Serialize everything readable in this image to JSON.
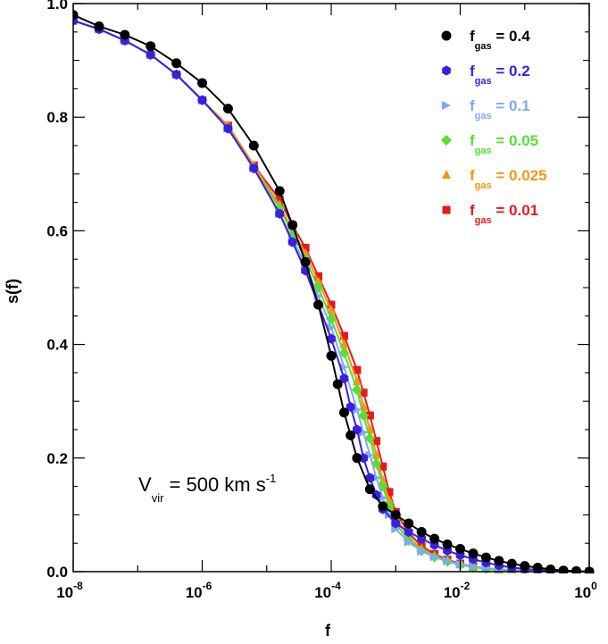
{
  "chart_data": {
    "type": "line",
    "title": "",
    "xlabel": "f",
    "ylabel": "s(f)",
    "xscale": "log",
    "xlim": [
      1e-08,
      1
    ],
    "ylim": [
      0,
      1.0
    ],
    "grid": false,
    "legend_position": "top-right",
    "x_ticks": [
      {
        "base": "10",
        "exp": "-8"
      },
      {
        "base": "10",
        "exp": "-6"
      },
      {
        "base": "10",
        "exp": "-4"
      },
      {
        "base": "10",
        "exp": "-2"
      },
      {
        "base": "10",
        "exp": "0"
      }
    ],
    "y_ticks": [
      "0.0",
      "0.2",
      "0.4",
      "0.6",
      "0.8",
      "1.0"
    ],
    "annotation": {
      "main": "V",
      "sub": "vir",
      "rest": " = 500 km s",
      "sup": "-1"
    },
    "series": [
      {
        "name": "0.4",
        "legend_main": "f",
        "legend_sub": "gas",
        "legend_rest": " = 0.4",
        "color": "#000000",
        "marker": "circle",
        "x": [
          -8.0,
          -7.6,
          -7.2,
          -6.8,
          -6.4,
          -6.0,
          -5.6,
          -5.2,
          -4.8,
          -4.6,
          -4.4,
          -4.2,
          -4.0,
          -3.9,
          -3.8,
          -3.7,
          -3.6,
          -3.4,
          -3.2,
          -3.0,
          -2.8,
          -2.6,
          -2.4,
          -2.2,
          -2.0,
          -1.8,
          -1.6,
          -1.4,
          -1.2,
          -1.0,
          -0.8,
          -0.6,
          -0.4,
          -0.2,
          0.0
        ],
        "y": [
          0.98,
          0.96,
          0.945,
          0.925,
          0.895,
          0.86,
          0.815,
          0.75,
          0.67,
          0.61,
          0.545,
          0.47,
          0.38,
          0.33,
          0.28,
          0.24,
          0.2,
          0.145,
          0.115,
          0.1,
          0.085,
          0.07,
          0.058,
          0.048,
          0.04,
          0.032,
          0.025,
          0.019,
          0.014,
          0.01,
          0.007,
          0.004,
          0.002,
          0.001,
          0.0
        ]
      },
      {
        "name": "0.2",
        "legend_main": "f",
        "legend_sub": "gas",
        "legend_rest": " = 0.2",
        "color": "#3a1fe0",
        "marker": "hexagon",
        "x": [
          -8.0,
          -7.6,
          -7.2,
          -6.8,
          -6.4,
          -6.0,
          -5.6,
          -5.2,
          -4.8,
          -4.6,
          -4.4,
          -4.2,
          -4.0,
          -3.8,
          -3.7,
          -3.6,
          -3.5,
          -3.4,
          -3.3,
          -3.2,
          -3.0,
          -2.8,
          -2.6,
          -2.4,
          -2.2,
          -2.0,
          -1.8,
          -1.6,
          -1.4,
          -1.2,
          -1.0,
          -0.8,
          -0.6,
          -0.4,
          -0.2,
          0.0
        ],
        "y": [
          0.97,
          0.955,
          0.935,
          0.91,
          0.875,
          0.83,
          0.78,
          0.71,
          0.63,
          0.58,
          0.53,
          0.47,
          0.41,
          0.34,
          0.29,
          0.25,
          0.2,
          0.165,
          0.135,
          0.11,
          0.085,
          0.07,
          0.058,
          0.047,
          0.037,
          0.029,
          0.022,
          0.016,
          0.011,
          0.007,
          0.005,
          0.003,
          0.002,
          0.001,
          0.0,
          0.0
        ]
      },
      {
        "name": "0.1",
        "legend_main": "f",
        "legend_sub": "gas",
        "legend_rest": " = 0.1",
        "color": "#7ea9f5",
        "marker": "triangle-right",
        "x": [
          -8.0,
          -7.6,
          -7.2,
          -6.8,
          -6.4,
          -6.0,
          -5.6,
          -5.2,
          -4.8,
          -4.6,
          -4.4,
          -4.2,
          -4.0,
          -3.8,
          -3.6,
          -3.5,
          -3.4,
          -3.3,
          -3.2,
          -3.1,
          -3.0,
          -2.8,
          -2.6,
          -2.4,
          -2.2,
          -2.0,
          -1.8,
          -1.6,
          -1.4,
          -1.2,
          -1.0,
          -0.8,
          -0.6,
          -0.4,
          -0.2,
          0.0
        ],
        "y": [
          0.97,
          0.955,
          0.935,
          0.91,
          0.875,
          0.83,
          0.78,
          0.71,
          0.63,
          0.585,
          0.54,
          0.485,
          0.43,
          0.36,
          0.285,
          0.245,
          0.205,
          0.165,
          0.13,
          0.1,
          0.075,
          0.052,
          0.036,
          0.026,
          0.019,
          0.013,
          0.009,
          0.006,
          0.004,
          0.003,
          0.002,
          0.001,
          0.0,
          0.0,
          0.0,
          0.0
        ]
      },
      {
        "name": "0.05",
        "legend_main": "f",
        "legend_sub": "gas",
        "legend_rest": " = 0.05",
        "color": "#55e030",
        "marker": "diamond",
        "x": [
          -8.0,
          -7.6,
          -7.2,
          -6.8,
          -6.4,
          -6.0,
          -5.6,
          -5.2,
          -4.8,
          -4.6,
          -4.4,
          -4.2,
          -4.0,
          -3.8,
          -3.6,
          -3.5,
          -3.4,
          -3.3,
          -3.2,
          -3.1,
          -3.0,
          -2.8,
          -2.6,
          -2.4,
          -2.2,
          -2.0,
          -1.8,
          -1.6,
          -1.4,
          -1.2,
          -1.0,
          -0.8,
          -0.6,
          -0.4,
          -0.2,
          0.0
        ],
        "y": [
          0.97,
          0.955,
          0.935,
          0.91,
          0.875,
          0.83,
          0.78,
          0.71,
          0.64,
          0.595,
          0.55,
          0.5,
          0.445,
          0.385,
          0.32,
          0.275,
          0.235,
          0.19,
          0.15,
          0.115,
          0.085,
          0.055,
          0.037,
          0.026,
          0.018,
          0.012,
          0.008,
          0.005,
          0.003,
          0.002,
          0.001,
          0.001,
          0.0,
          0.0,
          0.0,
          0.0
        ]
      },
      {
        "name": "0.025",
        "legend_main": "f",
        "legend_sub": "gas",
        "legend_rest": " = 0.025",
        "color": "#f59514",
        "marker": "triangle-up",
        "x": [
          -8.0,
          -7.6,
          -7.2,
          -6.8,
          -6.4,
          -6.0,
          -5.6,
          -5.2,
          -4.8,
          -4.6,
          -4.4,
          -4.2,
          -4.0,
          -3.8,
          -3.6,
          -3.5,
          -3.4,
          -3.3,
          -3.2,
          -3.1,
          -3.0,
          -2.8,
          -2.6,
          -2.4,
          -2.2,
          -2.0,
          -1.8,
          -1.6,
          -1.4,
          -1.2,
          -1.0,
          -0.8,
          -0.6,
          -0.4,
          -0.2,
          0.0
        ],
        "y": [
          0.97,
          0.955,
          0.935,
          0.91,
          0.875,
          0.83,
          0.785,
          0.715,
          0.645,
          0.6,
          0.56,
          0.51,
          0.46,
          0.4,
          0.335,
          0.29,
          0.25,
          0.205,
          0.16,
          0.125,
          0.095,
          0.06,
          0.04,
          0.028,
          0.019,
          0.013,
          0.009,
          0.006,
          0.004,
          0.002,
          0.001,
          0.001,
          0.0,
          0.0,
          0.0,
          0.0
        ]
      },
      {
        "name": "0.01",
        "legend_main": "f",
        "legend_sub": "gas",
        "legend_rest": " = 0.01",
        "color": "#e41a1c",
        "marker": "square",
        "x": [
          -8.0,
          -7.6,
          -7.2,
          -6.8,
          -6.4,
          -6.0,
          -5.6,
          -5.2,
          -4.8,
          -4.6,
          -4.4,
          -4.2,
          -4.0,
          -3.8,
          -3.6,
          -3.5,
          -3.4,
          -3.3,
          -3.2,
          -3.1,
          -3.0,
          -2.8,
          -2.6,
          -2.4,
          -2.2,
          -2.0,
          -1.8,
          -1.6,
          -1.4,
          -1.2,
          -1.0,
          -0.8,
          -0.6,
          -0.4,
          -0.2,
          0.0
        ],
        "y": [
          0.97,
          0.955,
          0.935,
          0.91,
          0.875,
          0.83,
          0.785,
          0.715,
          0.655,
          0.61,
          0.57,
          0.52,
          0.47,
          0.415,
          0.355,
          0.315,
          0.275,
          0.23,
          0.185,
          0.14,
          0.105,
          0.068,
          0.045,
          0.031,
          0.021,
          0.014,
          0.009,
          0.006,
          0.004,
          0.002,
          0.001,
          0.001,
          0.0,
          0.0,
          0.0,
          0.0
        ]
      }
    ]
  }
}
